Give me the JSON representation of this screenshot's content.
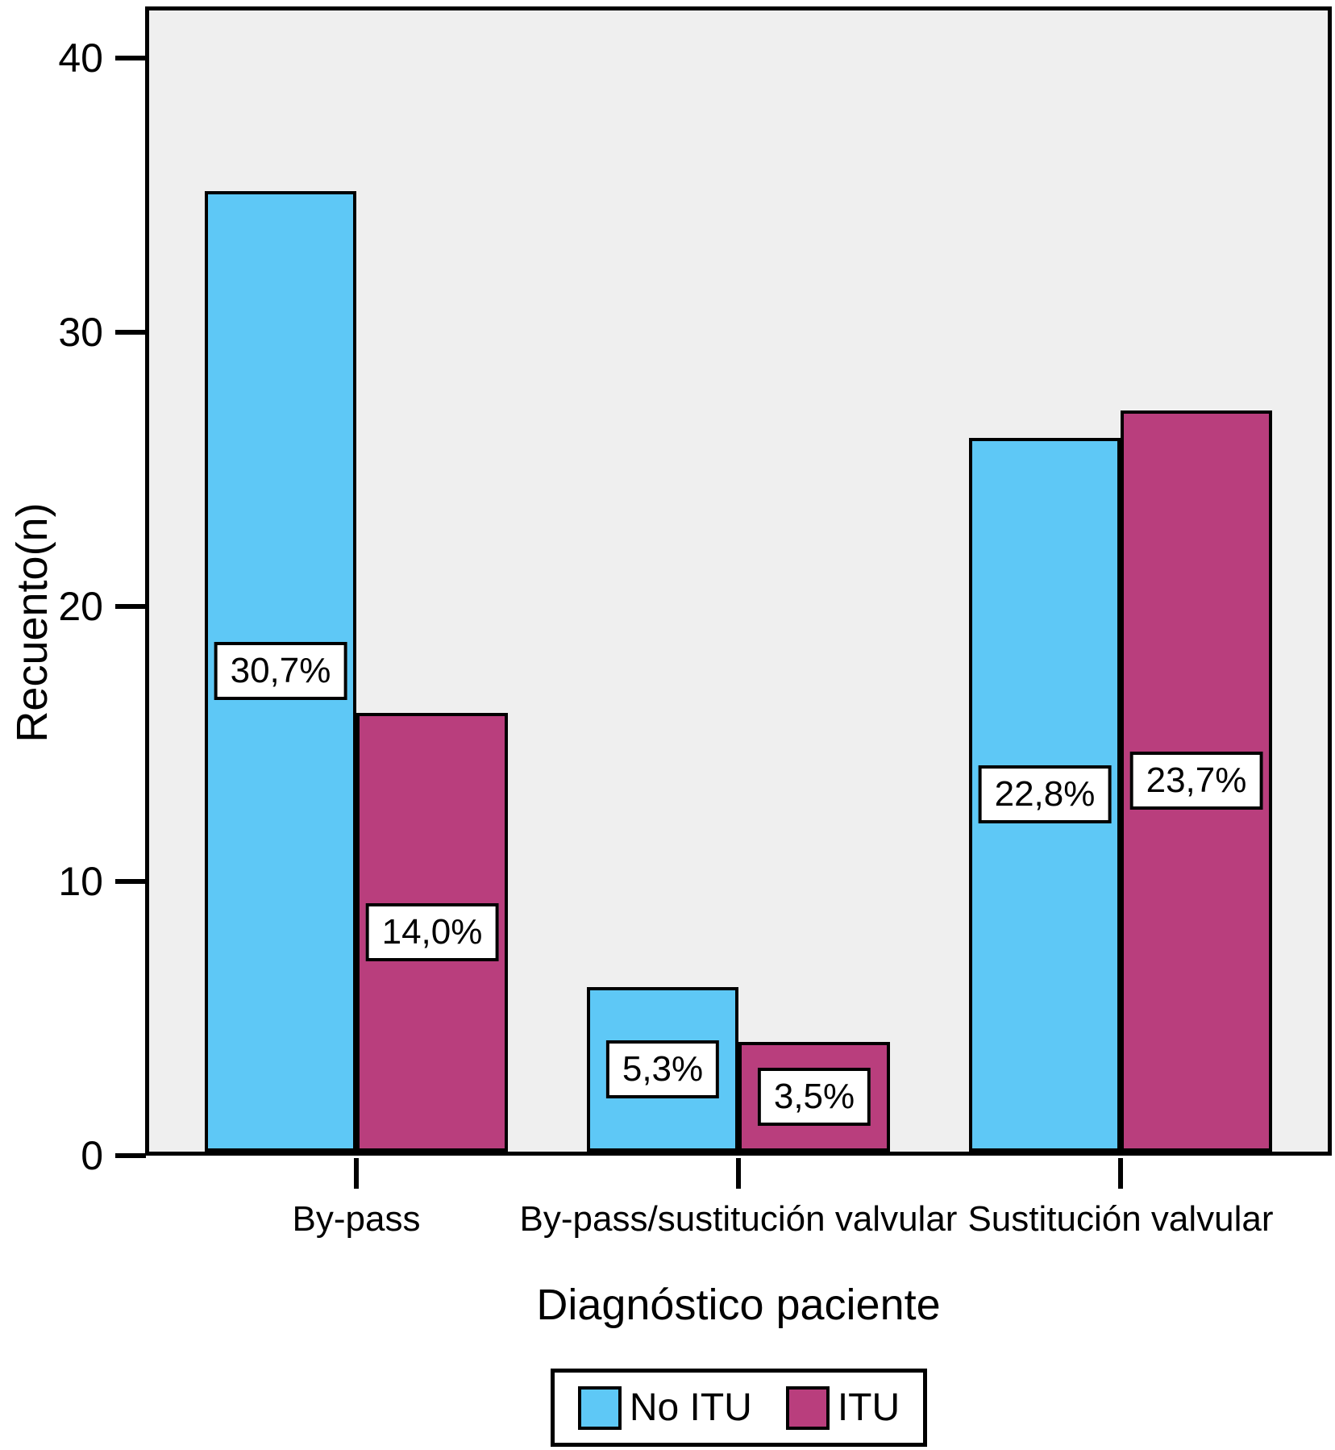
{
  "chart_data": {
    "type": "bar",
    "title": "",
    "xlabel": "Diagnóstico paciente",
    "ylabel": "Recuento(n)",
    "categories": [
      "By-pass",
      "By-pass/sustitución valvular",
      "Sustitución valvular"
    ],
    "series": [
      {
        "name": "No ITU",
        "color": "#5EC8F6",
        "values": [
          35,
          6,
          26
        ],
        "percent_labels": [
          "30,7%",
          "5,3%",
          "22,8%"
        ]
      },
      {
        "name": "ITU",
        "color": "#B93E7D",
        "values": [
          16,
          4,
          27
        ],
        "percent_labels": [
          "14,0%",
          "3,5%",
          "23,7%"
        ]
      }
    ],
    "ylim": [
      0,
      40
    ],
    "yticks": [
      "0",
      "10",
      "20",
      "30",
      "40"
    ],
    "grid": false,
    "legend_position": "bottom",
    "plot_background": "#EFEFEF",
    "bar_border_color": "#000000"
  }
}
